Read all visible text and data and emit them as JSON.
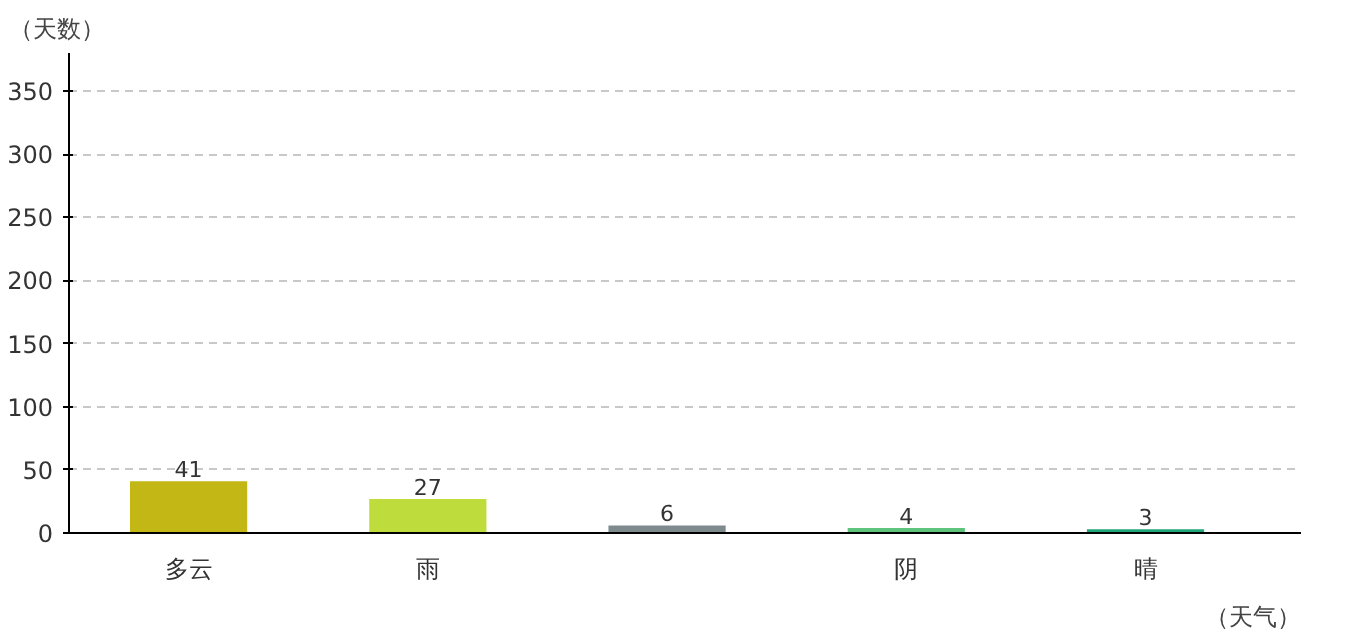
{
  "chart_data": {
    "type": "bar",
    "xlabel": "（天气）",
    "ylabel": "（天数）",
    "categories": [
      "多云",
      "雨",
      null,
      "阴",
      "晴"
    ],
    "values": [
      41,
      27,
      6,
      4,
      3
    ],
    "colors": [
      "#c2b714",
      "#bedd3d",
      "#7f8a8f",
      "#5ec47c",
      "#20a67a"
    ],
    "ylim": [
      0,
      380
    ],
    "yticks": [
      0,
      50,
      100,
      150,
      200,
      250,
      300,
      350
    ],
    "grid": "y",
    "data_labels": true
  }
}
